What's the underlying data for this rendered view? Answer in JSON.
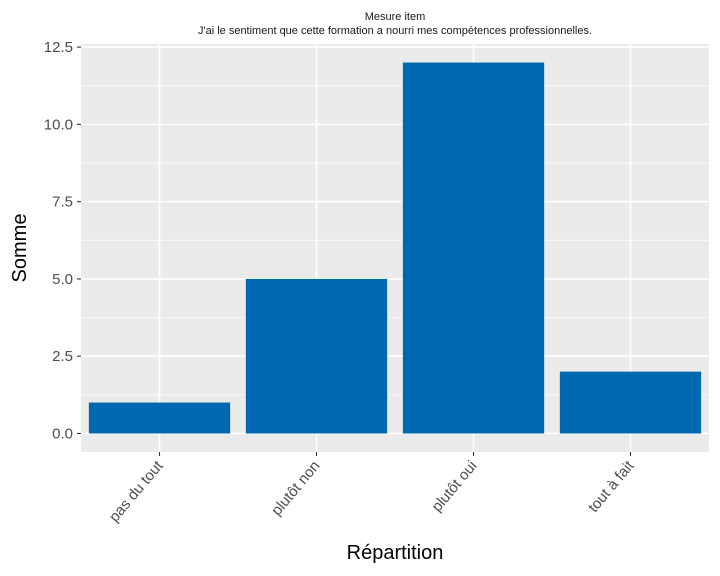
{
  "chart_data": {
    "type": "bar",
    "title": "Mesure item",
    "subtitle": "J'ai le sentiment que cette formation a nourri mes compétences professionnelles.",
    "xlabel": "Répartition",
    "ylabel": "Somme",
    "categories": [
      "pas du tout",
      "plutôt non",
      "plutôt oui",
      "tout à fait"
    ],
    "values": [
      1,
      5,
      12,
      2
    ],
    "ylim": [
      -0.6,
      12.6
    ],
    "yticks": [
      0,
      2.5,
      5,
      7.5,
      10,
      12.5
    ],
    "ytick_labels": [
      "0.0",
      "2.5",
      "5.0",
      "7.5",
      "10.0",
      "12.5"
    ],
    "bar_color": "#0068b1",
    "panel_color": "#ebebeb",
    "grid_color": "#ffffff",
    "grid": true,
    "legend": "none"
  }
}
